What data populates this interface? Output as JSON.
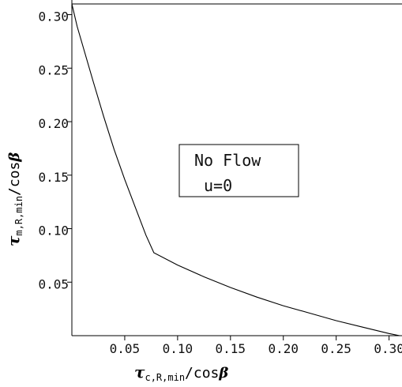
{
  "chart_data": {
    "type": "line",
    "xlabel": {
      "symbol": "τ",
      "subscript": "c,R,min",
      "suffix": "/cos",
      "beta": "β"
    },
    "ylabel": {
      "symbol": "τ",
      "subscript": "m,R,min",
      "suffix": "/cos",
      "beta": "β"
    },
    "xlim": [
      0,
      0.31
    ],
    "ylim": [
      0,
      0.31
    ],
    "x_ticks": [
      0.05,
      0.1,
      0.15,
      0.2,
      0.25,
      0.3
    ],
    "x_tick_labels": [
      "0.05",
      "0.10",
      "0.15",
      "0.20",
      "0.25",
      "0.30"
    ],
    "y_ticks": [
      0.05,
      0.1,
      0.15,
      0.2,
      0.25,
      0.3
    ],
    "y_tick_labels": [
      "0.05",
      "0.10",
      "0.15",
      "0.20",
      "0.25",
      "0.30"
    ],
    "grid": false,
    "series": [
      {
        "x": [
          0.0,
          0.005,
          0.01,
          0.02,
          0.03,
          0.04,
          0.05,
          0.06,
          0.07,
          0.0775,
          0.1,
          0.125,
          0.15,
          0.175,
          0.2,
          0.225,
          0.25,
          0.275,
          0.3,
          0.31
        ],
        "y": [
          0.31,
          0.289,
          0.272,
          0.238,
          0.205,
          0.174,
          0.146,
          0.12,
          0.094,
          0.0775,
          0.066,
          0.055,
          0.045,
          0.036,
          0.028,
          0.021,
          0.014,
          0.008,
          0.002,
          0.0
        ]
      }
    ],
    "annotation": {
      "lines": [
        "No Flow",
        "u=0"
      ]
    }
  }
}
